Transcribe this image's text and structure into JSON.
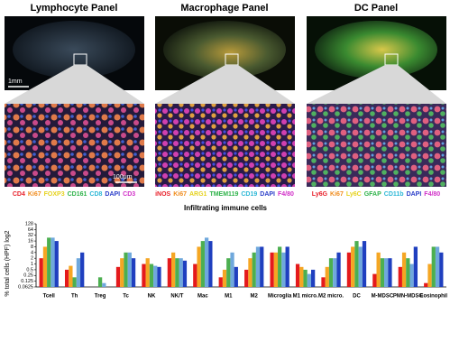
{
  "panels": [
    {
      "title": "Lymphocyte Panel",
      "markers": [
        {
          "text": "CD4",
          "color": "#e8202a"
        },
        {
          "text": "Ki67",
          "color": "#f08c1e"
        },
        {
          "text": "FOXP3",
          "color": "#e6d21e"
        },
        {
          "text": "CD161",
          "color": "#2fb34a"
        },
        {
          "text": "CD8",
          "color": "#2bb7d6"
        },
        {
          "text": "DAPI",
          "color": "#2b3fc9"
        },
        {
          "text": "CD3",
          "color": "#d12fc8"
        }
      ]
    },
    {
      "title": "Macrophage Panel",
      "markers": [
        {
          "text": "iNOS",
          "color": "#e8202a"
        },
        {
          "text": "Ki67",
          "color": "#f08c1e"
        },
        {
          "text": "ARG1",
          "color": "#e6d21e"
        },
        {
          "text": "TMEM119",
          "color": "#2fb34a"
        },
        {
          "text": "CD19",
          "color": "#2bb7d6"
        },
        {
          "text": "DAPI",
          "color": "#2b3fc9"
        },
        {
          "text": "F4/80",
          "color": "#d12fc8"
        }
      ]
    },
    {
      "title": "DC Panel",
      "markers": [
        {
          "text": "Ly6G",
          "color": "#e8202a"
        },
        {
          "text": "Ki67",
          "color": "#f08c1e"
        },
        {
          "text": "Ly6C",
          "color": "#e6d21e"
        },
        {
          "text": "GFAP",
          "color": "#2fb34a"
        },
        {
          "text": "CD11b",
          "color": "#2bb7d6"
        },
        {
          "text": "DAPI",
          "color": "#2b3fc9"
        },
        {
          "text": "F4/80",
          "color": "#d12fc8"
        }
      ]
    }
  ],
  "scale_bars": [
    "1mm",
    "100μm"
  ],
  "chart_data": {
    "type": "bar",
    "title": "Infiltrating immune cells",
    "y_label": "% total cells (HPF) log2",
    "log_base": 2,
    "categories": [
      "Tcell",
      "Th",
      "Treg",
      "Tc",
      "NK",
      "NK/T",
      "Mac",
      "M1",
      "M2",
      "Microglia",
      "M1 micro.",
      "M2 micro.",
      "DC",
      "M-MDSC",
      "PMN-MDSC",
      "Eosinophil"
    ],
    "series": [
      {
        "color": "#e41a1c",
        "values": [
          2,
          0.5,
          null,
          0.7,
          1,
          2,
          1,
          0.2,
          0.5,
          4,
          1,
          0.2,
          4,
          0.3,
          0.7,
          0.1
        ]
      },
      {
        "color": "#f5a623",
        "values": [
          8,
          0.8,
          null,
          2,
          2,
          4,
          8,
          0.5,
          2,
          4,
          0.7,
          0.7,
          8,
          4,
          4,
          1
        ]
      },
      {
        "color": "#4caf50",
        "values": [
          24,
          0.2,
          0.2,
          4,
          1,
          2,
          16,
          2,
          4,
          8,
          0.5,
          2,
          16,
          2,
          2,
          8
        ]
      },
      {
        "color": "#6fa8dc",
        "values": [
          24,
          2,
          0.1,
          4,
          0.8,
          2,
          24,
          4,
          8,
          4,
          0.3,
          2,
          8,
          2,
          1,
          8
        ]
      },
      {
        "color": "#1f3fbf",
        "values": [
          16,
          4,
          null,
          2,
          0.7,
          1.5,
          16,
          0.7,
          8,
          8,
          0.5,
          4,
          16,
          2,
          8,
          4
        ]
      }
    ],
    "ylim": [
      0.0625,
      128
    ],
    "yticks": [
      0.0625,
      0.125,
      0.25,
      0.5,
      1,
      2,
      4,
      8,
      16,
      32,
      64,
      128
    ]
  }
}
